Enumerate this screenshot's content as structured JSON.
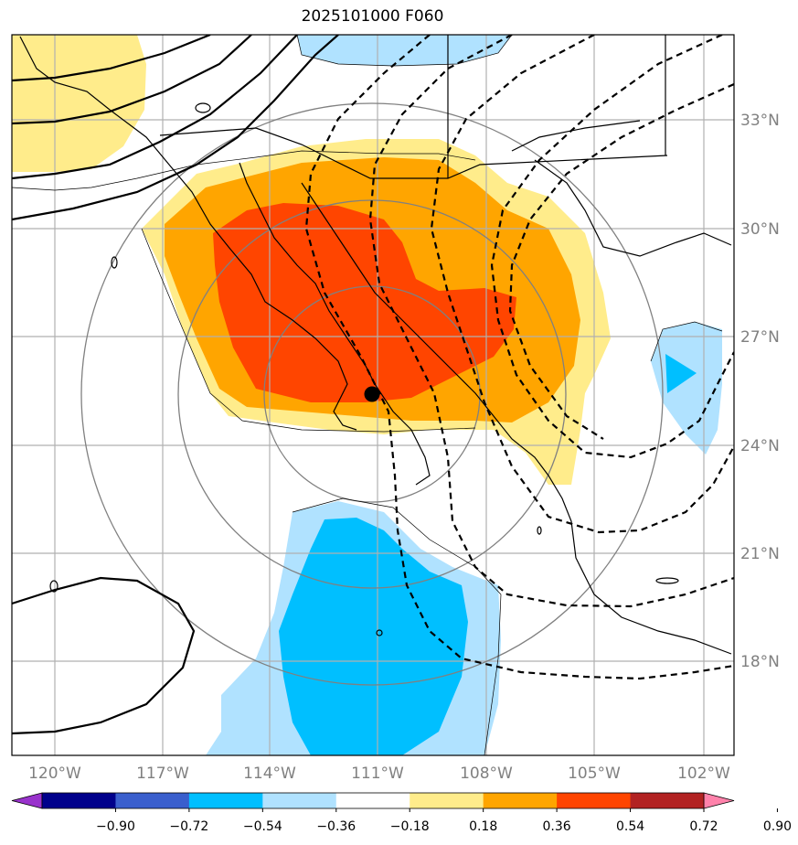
{
  "title": "2025101000 F060",
  "map": {
    "lon_labels": [
      "120°W",
      "117°W",
      "114°W",
      "111°W",
      "108°W",
      "105°W",
      "102°W"
    ],
    "lat_labels": [
      "33°N",
      "30°N",
      "27°N",
      "24°N",
      "21°N",
      "18°N"
    ],
    "label_color": "#808080",
    "gridline_color": "#b0b0b0",
    "marker": "black dot at storm center",
    "contour_style": {
      "solid": "positive",
      "dashed": "negative",
      "color": "#000000"
    }
  },
  "colorbar": {
    "tick_labels": [
      "−0.90",
      "−0.72",
      "−0.54",
      "−0.36",
      "−0.18",
      "0.18",
      "0.36",
      "0.54",
      "0.72",
      "0.90"
    ],
    "colors": [
      "#9932cc",
      "#00008b",
      "#3a5fcd",
      "#00bfff",
      "#b0e2ff",
      "#ffffff",
      "#ffec8b",
      "#ffa500",
      "#ff4500",
      "#b22222",
      "#ff82ab"
    ],
    "extend": "both"
  }
}
